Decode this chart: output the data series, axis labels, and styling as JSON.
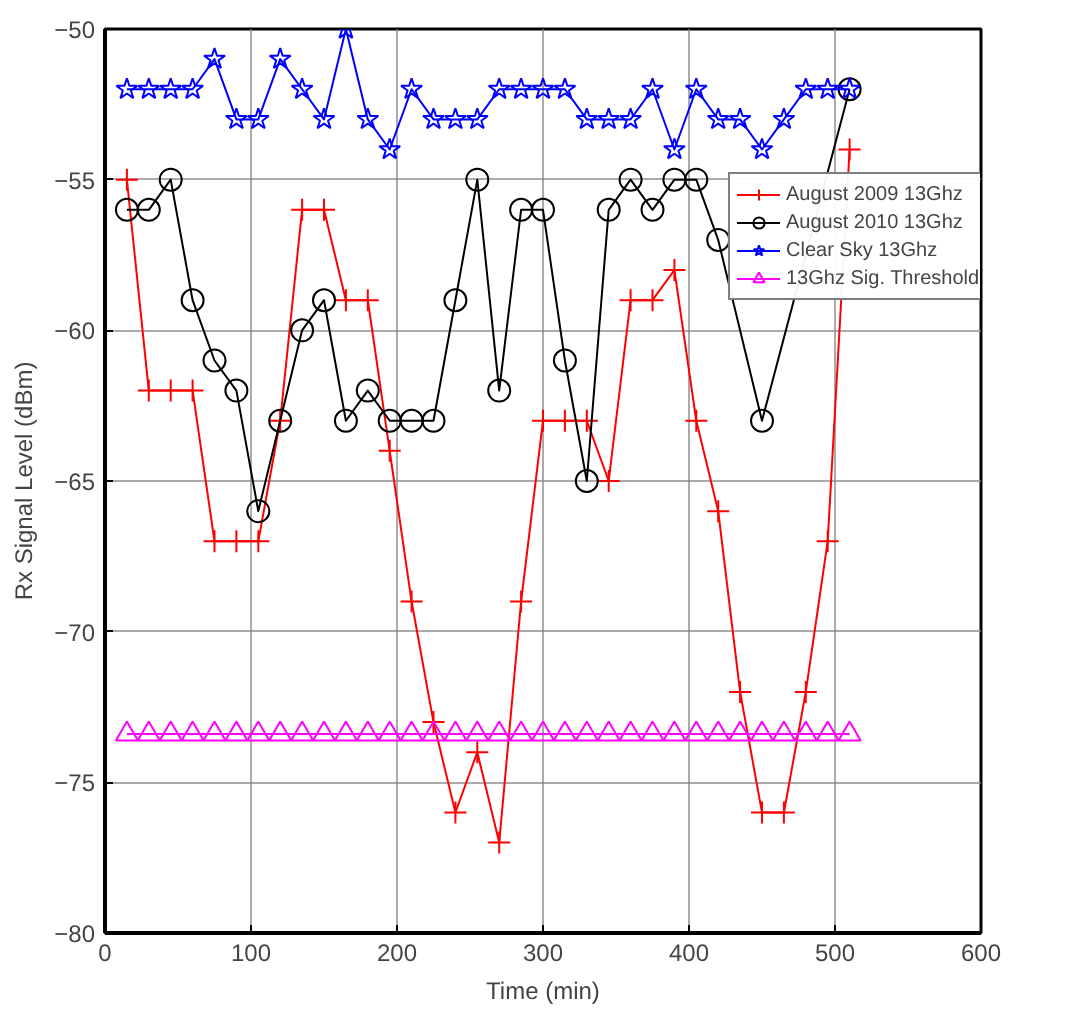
{
  "chart_data": {
    "type": "line",
    "xlabel": "Time (min)",
    "ylabel": "Rx Signal Level (dBm)",
    "x": [
      15,
      30,
      45,
      60,
      75,
      90,
      105,
      120,
      135,
      150,
      165,
      180,
      195,
      210,
      225,
      240,
      255,
      270,
      285,
      300,
      315,
      330,
      345,
      360,
      375,
      390,
      405,
      420,
      435,
      450,
      465,
      480,
      495,
      510
    ],
    "series": [
      {
        "name": "August 2009 13Ghz",
        "color": "#ff0000",
        "marker": "cross",
        "values": [
          -55,
          -62,
          -62,
          -62,
          -67,
          -67,
          -67,
          -63,
          -56,
          -56,
          -59,
          -59,
          -64,
          -69,
          -73,
          -76,
          -74,
          -77,
          -69,
          -63,
          -63,
          -63,
          -65,
          -59,
          -59,
          -58,
          -63,
          -66,
          -72,
          -76,
          -76,
          -72,
          -67,
          -54
        ]
      },
      {
        "name": "August 2010 13Ghz",
        "color": "#000000",
        "marker": "circle",
        "values": [
          -56,
          -56,
          -55,
          -59,
          -61,
          -62,
          -66,
          -63,
          -60,
          -59,
          -63,
          -62,
          -63,
          -63,
          -63,
          -59,
          -55,
          -62,
          -56,
          -56,
          -61,
          -65,
          -56,
          -55,
          -56,
          -55,
          -55,
          -57,
          null,
          -63,
          null,
          null,
          null,
          -52
        ]
      },
      {
        "name": "Clear Sky 13Ghz",
        "color": "#0000ff",
        "marker": "star",
        "values": [
          -52,
          -52,
          -52,
          -52,
          -51,
          -53,
          -53,
          -51,
          -52,
          -53,
          -50,
          -53,
          -54,
          -52,
          -53,
          -53,
          -53,
          -52,
          -52,
          -52,
          -52,
          -53,
          -53,
          -53,
          -52,
          -54,
          -52,
          -53,
          -53,
          -54,
          -53,
          -52,
          -52,
          -52
        ]
      },
      {
        "name": "13Ghz Sig. Threshold",
        "color": "#ff00ff",
        "marker": "triangle",
        "values": [
          -73.4,
          -73.4,
          -73.4,
          -73.4,
          -73.4,
          -73.4,
          -73.4,
          -73.4,
          -73.4,
          -73.4,
          -73.4,
          -73.4,
          -73.4,
          -73.4,
          -73.4,
          -73.4,
          -73.4,
          -73.4,
          -73.4,
          -73.4,
          -73.4,
          -73.4,
          -73.4,
          -73.4,
          -73.4,
          -73.4,
          -73.4,
          -73.4,
          -73.4,
          -73.4,
          -73.4,
          -73.4,
          -73.4,
          -73.4
        ]
      }
    ],
    "xlim": [
      0,
      600
    ],
    "xticks": [
      0,
      100,
      200,
      300,
      400,
      500,
      600
    ],
    "ylim": [
      -80,
      -50
    ],
    "yticks": [
      -80,
      -75,
      -70,
      -65,
      -60,
      -55,
      -50
    ],
    "grid": true,
    "legend": "top right"
  }
}
